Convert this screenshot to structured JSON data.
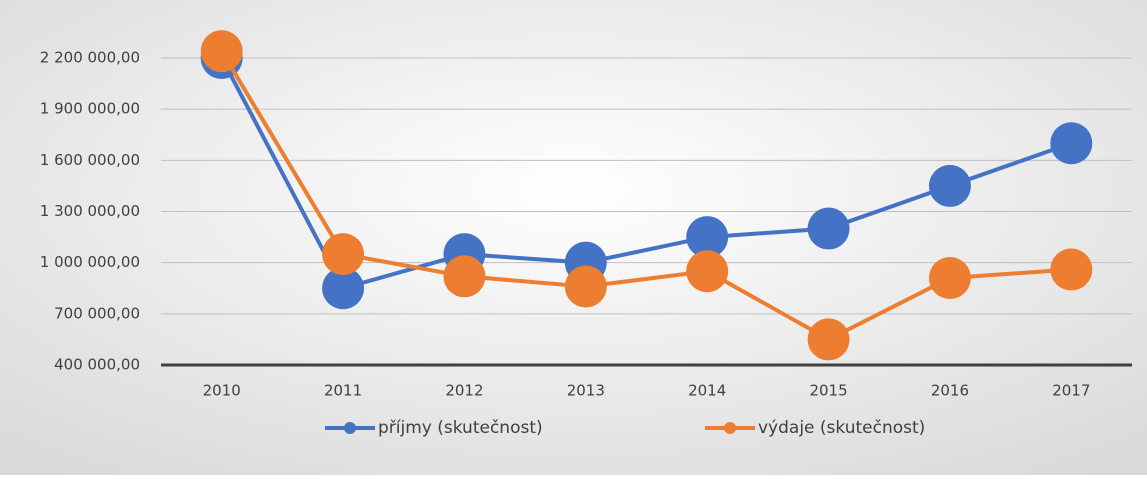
{
  "chart_data": {
    "type": "line",
    "categories": [
      "2010",
      "2011",
      "2012",
      "2013",
      "2014",
      "2015",
      "2016",
      "2017"
    ],
    "series": [
      {
        "name": "příjmy (skutečnost)",
        "color": "#4472c4",
        "values": [
          2200000,
          850000,
          1050000,
          1000000,
          1150000,
          1200000,
          1450000,
          1700000
        ]
      },
      {
        "name": "výdaje (skutečnost)",
        "color": "#ed7d31",
        "values": [
          2240000,
          1050000,
          920000,
          860000,
          950000,
          550000,
          910000,
          960000
        ]
      }
    ],
    "ylim": [
      400000,
      2200000
    ],
    "yticks": [
      {
        "value": 400000,
        "label": "400 000,00"
      },
      {
        "value": 700000,
        "label": "700 000,00"
      },
      {
        "value": 1000000,
        "label": "1 000 000,00"
      },
      {
        "value": 1300000,
        "label": "1 300 000,00"
      },
      {
        "value": 1600000,
        "label": "1 600 000,00"
      },
      {
        "value": 1900000,
        "label": "1 900 000,00"
      },
      {
        "value": 2200000,
        "label": "2 200 000,00"
      }
    ],
    "grid": true,
    "legend": "bottom"
  }
}
